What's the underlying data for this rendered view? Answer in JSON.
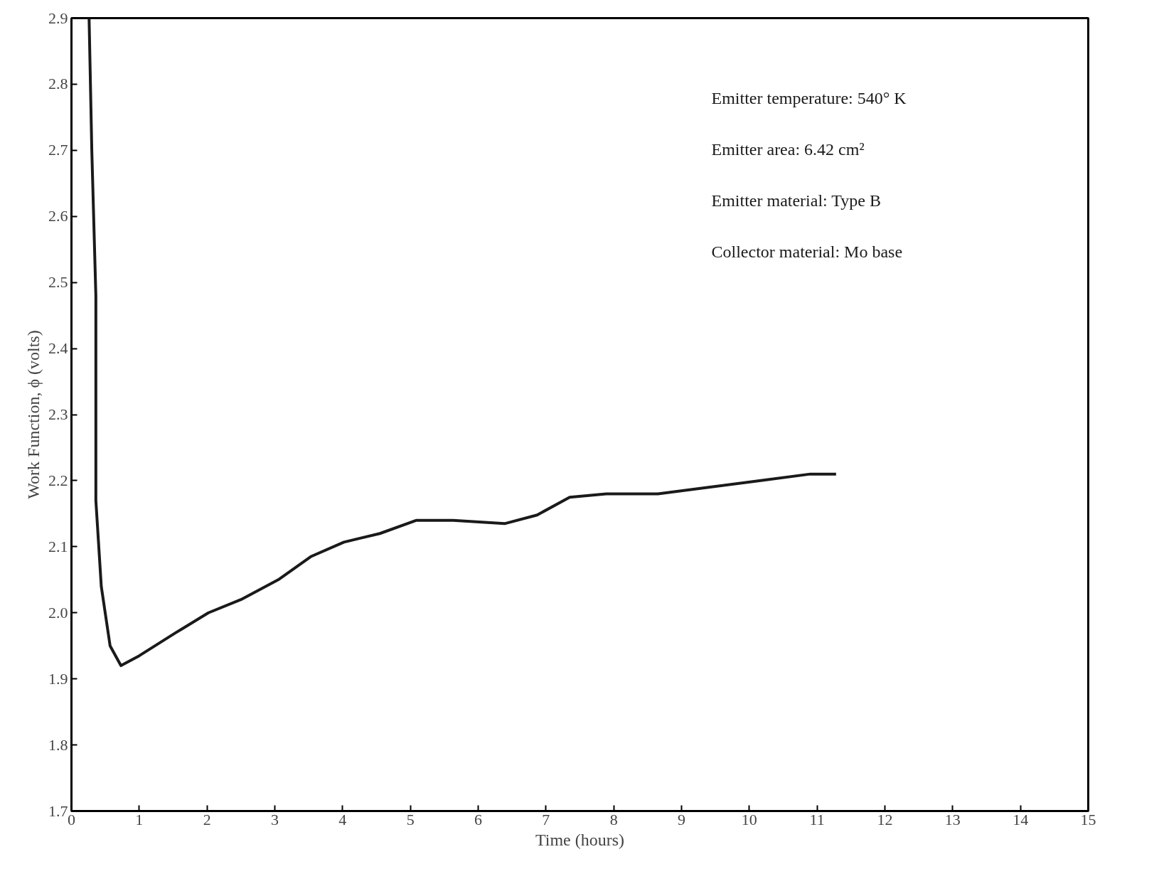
{
  "chart_data": {
    "type": "line",
    "xlabel": "Time (hours)",
    "ylabel": "Work Function, ϕ (volts)",
    "x": [
      0.26,
      0.3,
      0.36,
      0.36,
      0.44,
      0.57,
      0.73,
      1.0,
      1.54,
      2.02,
      2.5,
      3.05,
      3.53,
      4.02,
      4.55,
      5.09,
      5.63,
      6.39,
      6.87,
      7.35,
      7.89,
      8.65,
      9.4,
      10.15,
      10.9,
      11.28
    ],
    "series": [
      {
        "color": "#1a1a1a",
        "values": [
          2.9,
          2.7,
          2.48,
          2.17,
          2.04,
          1.95,
          1.92,
          1.935,
          1.97,
          2.0,
          2.02,
          2.05,
          2.085,
          2.107,
          2.12,
          2.14,
          2.14,
          2.135,
          2.148,
          2.175,
          2.18,
          2.18,
          2.19,
          2.2,
          2.21,
          2.21
        ]
      }
    ],
    "xlim": [
      0,
      15
    ],
    "xticks": [
      0,
      1,
      2,
      3,
      4,
      5,
      6,
      7,
      8,
      9,
      10,
      11,
      12,
      13,
      14,
      15
    ],
    "ylim": [
      1.7,
      2.9
    ],
    "yticks": [
      {
        "value": 1.7,
        "label": "1.7"
      },
      {
        "value": 1.8,
        "label": "1.8"
      },
      {
        "value": 1.9,
        "label": "1.9"
      },
      {
        "value": 2.0,
        "label": "2.0"
      },
      {
        "value": 2.1,
        "label": "2.1"
      },
      {
        "value": 2.2,
        "label": "2.2"
      },
      {
        "value": 2.3,
        "label": "2.3"
      },
      {
        "value": 2.4,
        "label": "2.4"
      },
      {
        "value": 2.5,
        "label": "2.5"
      },
      {
        "value": 2.6,
        "label": "2.6"
      },
      {
        "value": 2.7,
        "label": "2.7"
      },
      {
        "value": 2.8,
        "label": "2.8"
      },
      {
        "value": 2.9,
        "label": "2.9"
      }
    ],
    "grid": false,
    "marker": "none",
    "line_style": "solid",
    "annotations": [
      "Emitter temperature: 540° K",
      "Emitter area: 6.42 cm²",
      "Emitter material: Type B",
      "Collector material: Mo base"
    ]
  }
}
